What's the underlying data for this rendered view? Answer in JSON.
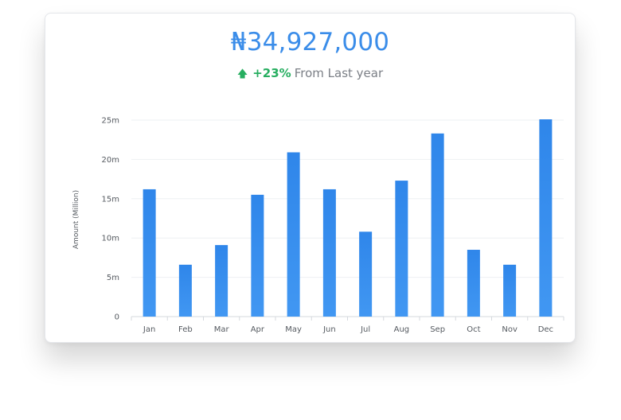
{
  "summary": {
    "amount": "₦34,927,000",
    "change": "+23%",
    "change_text": "From Last year",
    "arrow_icon": "arrow-up-icon"
  },
  "colors": {
    "bar": "#2f86ea",
    "bar_light": "#4197f2",
    "amount": "#3b8de9",
    "positive": "#27ae60",
    "grid": "#eef0f3"
  },
  "chart_data": {
    "type": "bar",
    "title": "",
    "xlabel": "",
    "ylabel": "Amount (Million)",
    "categories": [
      "Jan",
      "Feb",
      "Mar",
      "Apr",
      "May",
      "Jun",
      "Jul",
      "Aug",
      "Sep",
      "Oct",
      "Nov",
      "Dec"
    ],
    "values": [
      16.2,
      6.6,
      9.1,
      15.5,
      20.9,
      16.2,
      10.8,
      17.3,
      23.3,
      8.5,
      6.6,
      25.1
    ],
    "ylim": [
      0,
      25
    ],
    "yticks": [
      0,
      5,
      10,
      15,
      20,
      25
    ],
    "ytick_labels": [
      "0",
      "5m",
      "10m",
      "15m",
      "20m",
      "25m"
    ],
    "grid": true,
    "legend": "none"
  }
}
